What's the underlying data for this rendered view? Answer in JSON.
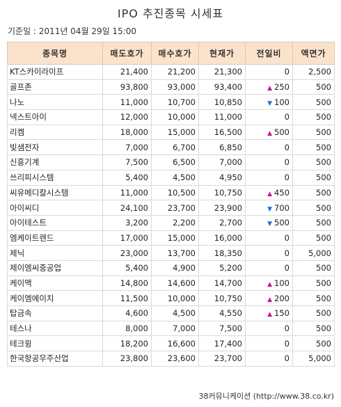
{
  "title": "IPO 추진종목 시세표",
  "date": "기준일 : 2011년 04월 29일 15:00",
  "columns": [
    "종목명",
    "매도호가",
    "매수호가",
    "현재가",
    "전일비",
    "액면가"
  ],
  "rows": [
    {
      "name": "KT스카이라이프",
      "ask": "21,400",
      "bid": "21,200",
      "price": "21,300",
      "dir": "",
      "change": "0",
      "face": "2,500"
    },
    {
      "name": "골프존",
      "ask": "93,800",
      "bid": "93,000",
      "price": "93,400",
      "dir": "up",
      "change": "250",
      "face": "500"
    },
    {
      "name": "나노",
      "ask": "11,000",
      "bid": "10,700",
      "price": "10,850",
      "dir": "down",
      "change": "100",
      "face": "500"
    },
    {
      "name": "넥스트아이",
      "ask": "12,000",
      "bid": "10,000",
      "price": "11,000",
      "dir": "",
      "change": "0",
      "face": "500"
    },
    {
      "name": "리켐",
      "ask": "18,000",
      "bid": "15,000",
      "price": "16,500",
      "dir": "up",
      "change": "500",
      "face": "500"
    },
    {
      "name": "빛샘전자",
      "ask": "7,000",
      "bid": "6,700",
      "price": "6,850",
      "dir": "",
      "change": "0",
      "face": "500"
    },
    {
      "name": "신흥기계",
      "ask": "7,500",
      "bid": "6,500",
      "price": "7,000",
      "dir": "",
      "change": "0",
      "face": "500"
    },
    {
      "name": "쓰리피시스템",
      "ask": "5,400",
      "bid": "4,500",
      "price": "4,950",
      "dir": "",
      "change": "0",
      "face": "500"
    },
    {
      "name": "씨유메디칼시스템",
      "ask": "11,000",
      "bid": "10,500",
      "price": "10,750",
      "dir": "up",
      "change": "450",
      "face": "500"
    },
    {
      "name": "아이씨디",
      "ask": "24,100",
      "bid": "23,700",
      "price": "23,900",
      "dir": "down",
      "change": "700",
      "face": "500"
    },
    {
      "name": "아이테스트",
      "ask": "3,200",
      "bid": "2,200",
      "price": "2,700",
      "dir": "down",
      "change": "500",
      "face": "500"
    },
    {
      "name": "엠케이트렌드",
      "ask": "17,000",
      "bid": "15,000",
      "price": "16,000",
      "dir": "",
      "change": "0",
      "face": "500"
    },
    {
      "name": "제닉",
      "ask": "23,000",
      "bid": "13,700",
      "price": "18,350",
      "dir": "",
      "change": "0",
      "face": "5,000"
    },
    {
      "name": "제이엠씨중공업",
      "ask": "5,400",
      "bid": "4,900",
      "price": "5,200",
      "dir": "",
      "change": "0",
      "face": "500"
    },
    {
      "name": "케이맥",
      "ask": "14,800",
      "bid": "14,600",
      "price": "14,700",
      "dir": "up",
      "change": "100",
      "face": "500"
    },
    {
      "name": "케이엠에이치",
      "ask": "11,500",
      "bid": "10,000",
      "price": "10,750",
      "dir": "up",
      "change": "200",
      "face": "500"
    },
    {
      "name": "탑금속",
      "ask": "4,600",
      "bid": "4,500",
      "price": "4,550",
      "dir": "up",
      "change": "150",
      "face": "500"
    },
    {
      "name": "테스나",
      "ask": "8,000",
      "bid": "7,000",
      "price": "7,500",
      "dir": "",
      "change": "0",
      "face": "500"
    },
    {
      "name": "테크윙",
      "ask": "18,200",
      "bid": "16,600",
      "price": "17,400",
      "dir": "",
      "change": "0",
      "face": "500"
    },
    {
      "name": "한국항공우주산업",
      "ask": "23,800",
      "bid": "23,600",
      "price": "23,700",
      "dir": "",
      "change": "0",
      "face": "5,000"
    }
  ],
  "footer": "38커뮤니케이션 (http://www.38.co.kr)",
  "colors": {
    "header_bg": "#fbe3cb",
    "up": "#c4148c",
    "down": "#1e6fd4"
  },
  "icons": {
    "up": "triangle-up-icon",
    "down": "triangle-down-icon"
  }
}
